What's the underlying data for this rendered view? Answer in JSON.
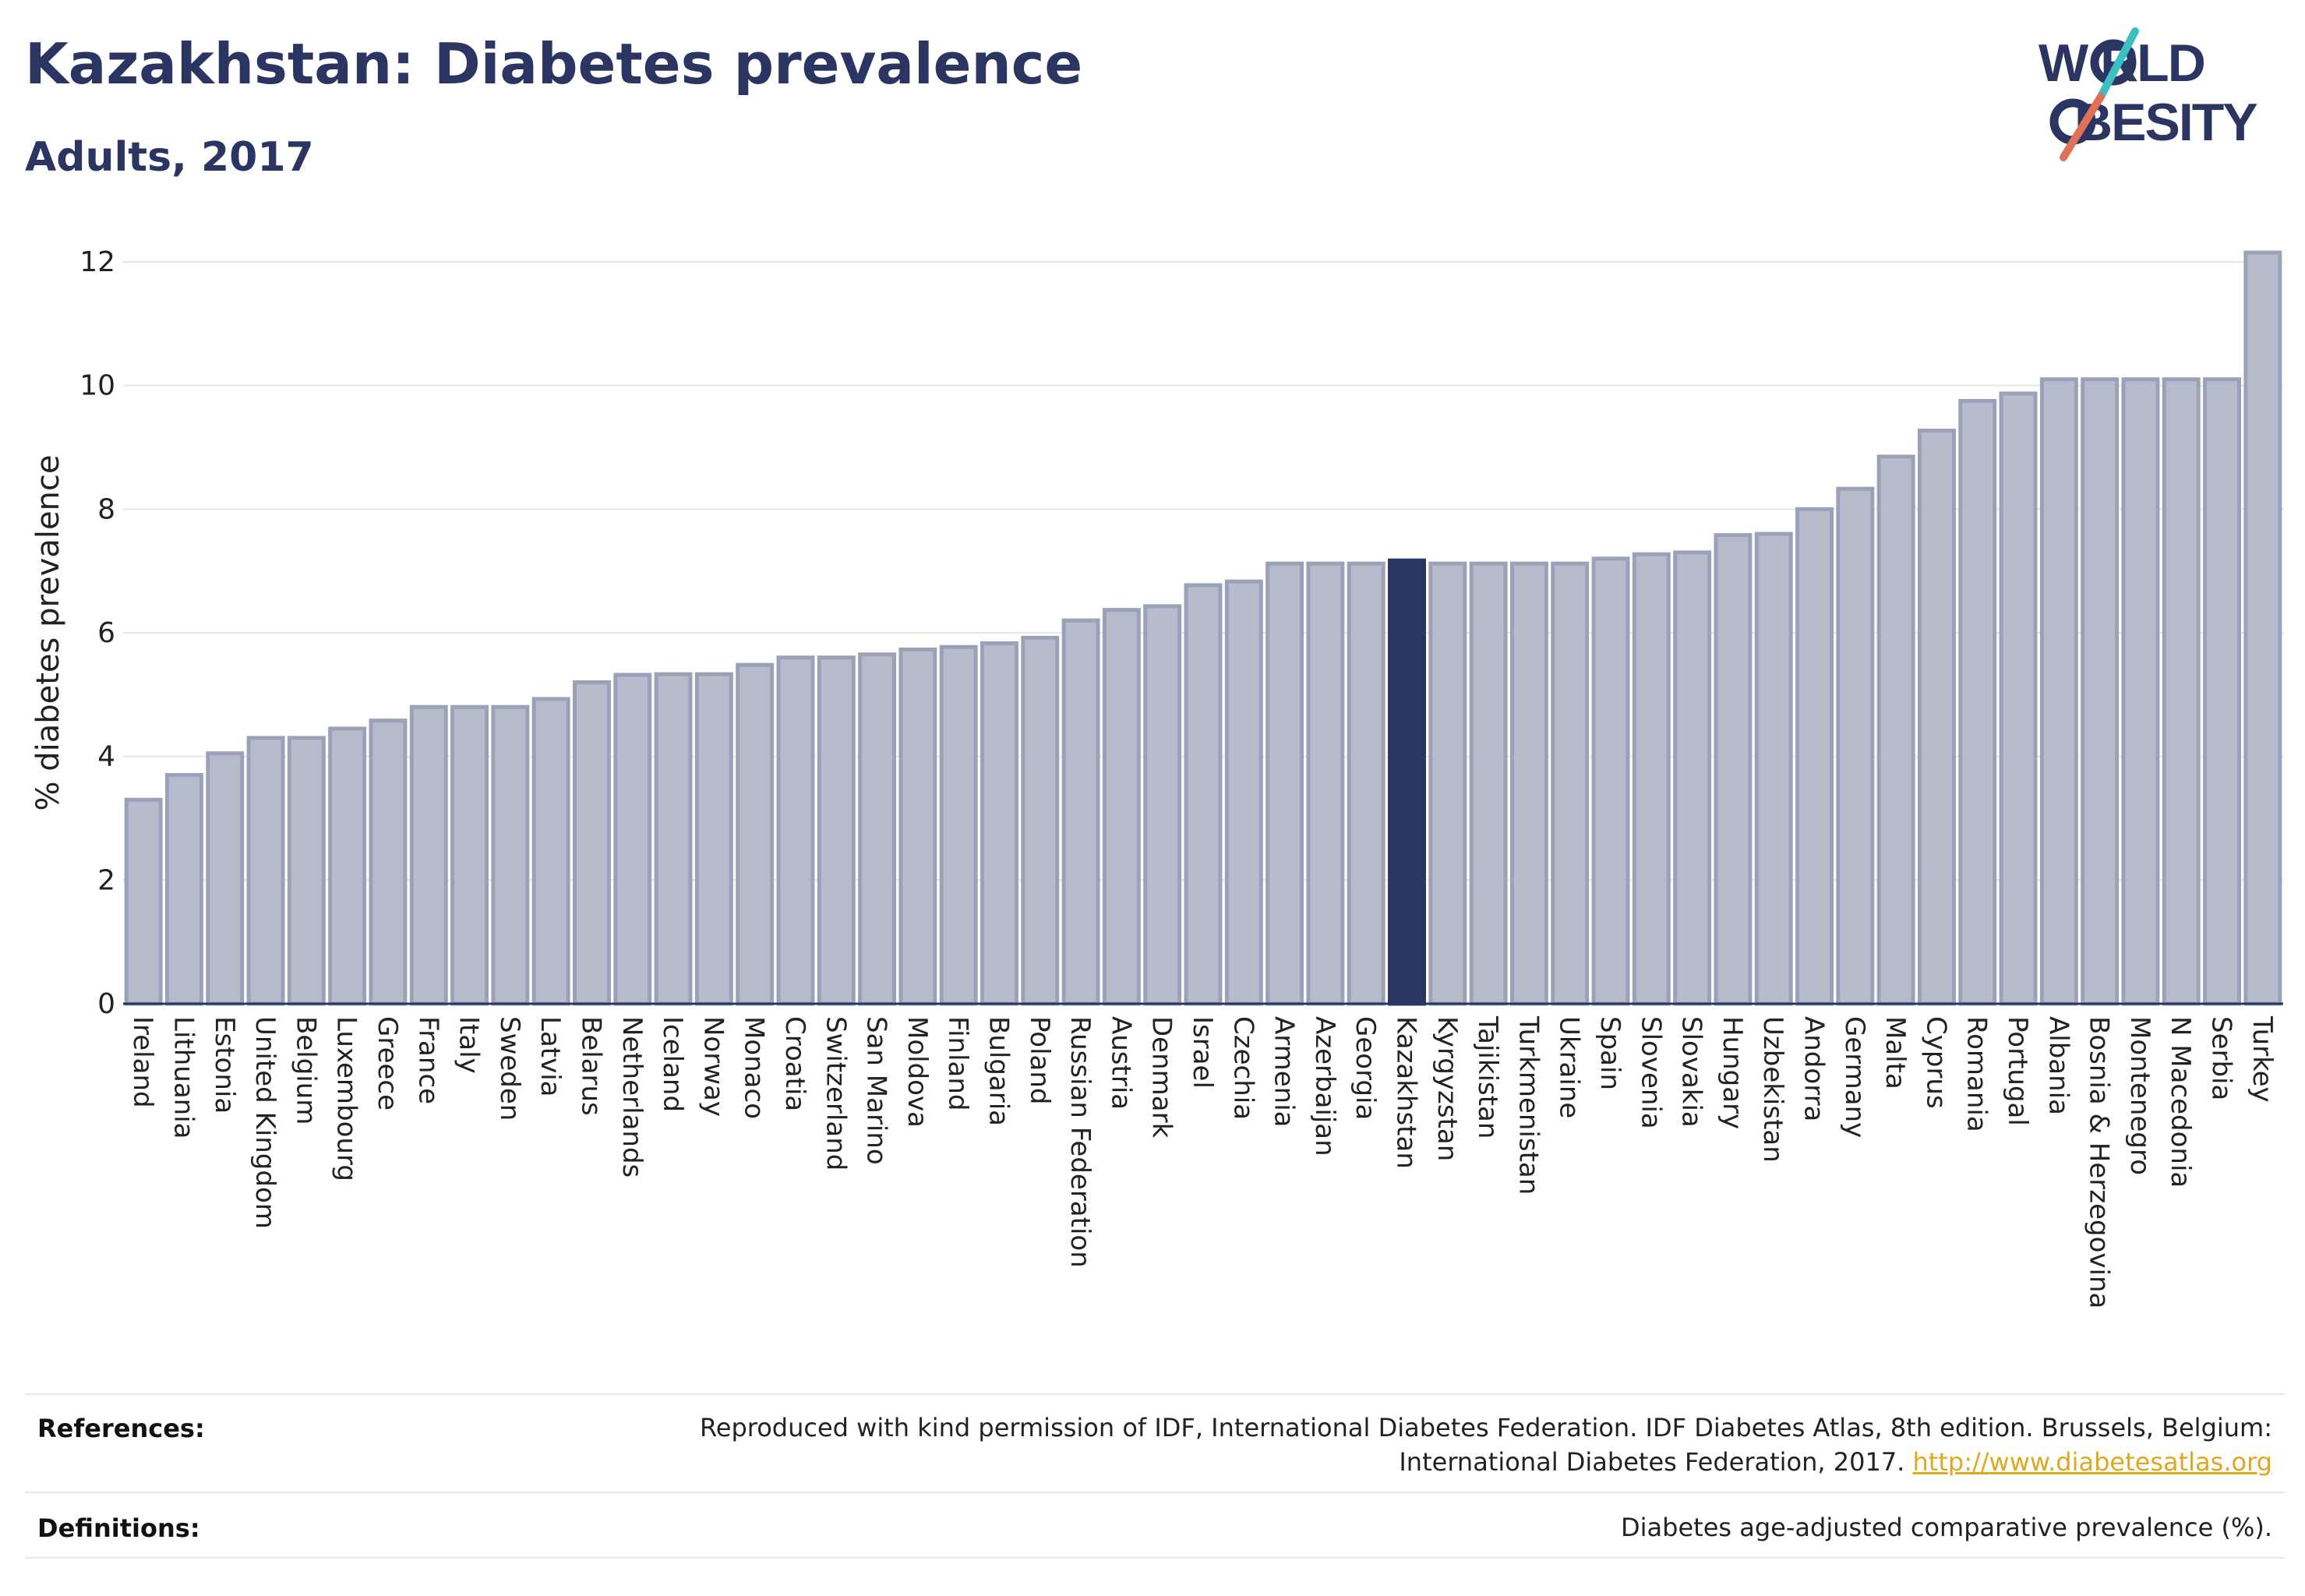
{
  "header": {
    "title": "Kazakhstan: Diabetes prevalence",
    "subtitle": "Adults, 2017"
  },
  "logo": {
    "line1": "W RLD",
    "line2": "BESITY",
    "accent_colors": [
      "#3bbfc0",
      "#e0705a"
    ],
    "text_color": "#2b3561"
  },
  "chart_data": {
    "type": "bar",
    "ylabel": "% diabetes prevalence",
    "xlabel": "",
    "ylim": [
      0,
      12.5
    ],
    "yticks": [
      0,
      2,
      4,
      6,
      8,
      10,
      12
    ],
    "grid": true,
    "highlight": "Kazakhstan",
    "colors": {
      "bar": "#b7bccc",
      "bar_edge": "#9ba1b8",
      "highlight": "#2b3561"
    },
    "categories": [
      "Ireland",
      "Lithuania",
      "Estonia",
      "United Kingdom",
      "Belgium",
      "Luxembourg",
      "Greece",
      "France",
      "Italy",
      "Sweden",
      "Latvia",
      "Belarus",
      "Netherlands",
      "Iceland",
      "Norway",
      "Monaco",
      "Croatia",
      "Switzerland",
      "San Marino",
      "Moldova",
      "Finland",
      "Bulgaria",
      "Poland",
      "Russian Federation",
      "Austria",
      "Denmark",
      "Israel",
      "Czechia",
      "Armenia",
      "Azerbaijan",
      "Georgia",
      "Kazakhstan",
      "Kyrgyzstan",
      "Tajikistan",
      "Turkmenistan",
      "Ukraine",
      "Spain",
      "Slovenia",
      "Slovakia",
      "Hungary",
      "Uzbekistan",
      "Andorra",
      "Germany",
      "Malta",
      "Cyprus",
      "Romania",
      "Portugal",
      "Albania",
      "Bosnia & Herzegovina",
      "Montenegro",
      "N Macedonia",
      "Serbia",
      "Turkey"
    ],
    "values": [
      3.3,
      3.7,
      4.05,
      4.3,
      4.3,
      4.45,
      4.58,
      4.8,
      4.8,
      4.8,
      4.93,
      5.2,
      5.32,
      5.33,
      5.33,
      5.48,
      5.6,
      5.6,
      5.65,
      5.73,
      5.77,
      5.83,
      5.92,
      6.2,
      6.37,
      6.43,
      6.77,
      6.83,
      7.12,
      7.12,
      7.12,
      7.17,
      7.12,
      7.12,
      7.12,
      7.12,
      7.2,
      7.27,
      7.3,
      7.58,
      7.6,
      8.0,
      8.33,
      8.85,
      9.27,
      9.75,
      9.87,
      10.1,
      10.1,
      10.1,
      10.1,
      10.1,
      12.15
    ]
  },
  "footer": {
    "references_label": "References:",
    "references_line1": "Reproduced with kind permission of IDF, International Diabetes Federation. IDF Diabetes Atlas, 8th edition. Brussels, Belgium:",
    "references_line2": "International Diabetes Federation, 2017.",
    "references_link": "http://www.diabetesatlas.org",
    "definitions_label": "Definitions:",
    "definitions_text": "Diabetes age-adjusted comparative prevalence (%)."
  }
}
